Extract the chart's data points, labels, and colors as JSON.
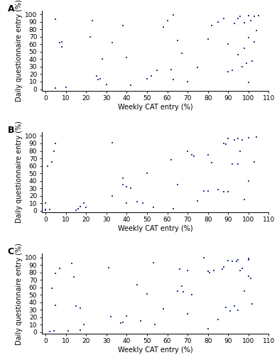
{
  "A": {
    "x": [
      5,
      5,
      7,
      8,
      8,
      10,
      22,
      23,
      25,
      26,
      27,
      28,
      30,
      33,
      38,
      40,
      42,
      50,
      52,
      55,
      58,
      60,
      62,
      63,
      63,
      65,
      67,
      70,
      75,
      80,
      82,
      85,
      88,
      90,
      90,
      92,
      93,
      95,
      95,
      96,
      97,
      98,
      98,
      99,
      100,
      100,
      100,
      101,
      102,
      103,
      103,
      104,
      105
    ],
    "y": [
      1,
      94,
      62,
      57,
      63,
      2,
      70,
      92,
      18,
      13,
      14,
      40,
      6,
      62,
      85,
      42,
      5,
      14,
      18,
      25,
      83,
      92,
      26,
      13,
      99,
      65,
      48,
      10,
      29,
      67,
      85,
      90,
      95,
      23,
      60,
      25,
      88,
      46,
      95,
      97,
      30,
      55,
      89,
      35,
      9,
      69,
      98,
      92,
      38,
      63,
      97,
      78,
      98
    ]
  },
  "B": {
    "x": [
      0,
      0,
      0,
      0,
      1,
      2,
      3,
      4,
      5,
      15,
      16,
      17,
      19,
      20,
      33,
      33,
      38,
      38,
      40,
      40,
      42,
      45,
      48,
      50,
      53,
      62,
      63,
      65,
      70,
      72,
      73,
      75,
      78,
      80,
      80,
      82,
      85,
      88,
      88,
      89,
      90,
      90,
      92,
      93,
      95,
      95,
      96,
      97,
      98,
      100,
      100,
      103,
      104
    ],
    "y": [
      1,
      1,
      10,
      2,
      60,
      2,
      65,
      80,
      90,
      1,
      3,
      5,
      10,
      4,
      91,
      20,
      35,
      43,
      32,
      10,
      30,
      12,
      10,
      50,
      4,
      68,
      3,
      35,
      80,
      75,
      73,
      13,
      26,
      75,
      26,
      64,
      28,
      90,
      25,
      89,
      97,
      25,
      62,
      95,
      62,
      97,
      80,
      95,
      15,
      40,
      98,
      65,
      99
    ]
  },
  "C": {
    "x": [
      2,
      3,
      4,
      5,
      5,
      7,
      11,
      13,
      14,
      15,
      17,
      17,
      19,
      31,
      32,
      37,
      38,
      40,
      45,
      47,
      50,
      53,
      54,
      58,
      65,
      66,
      67,
      68,
      70,
      70,
      72,
      78,
      80,
      80,
      81,
      83,
      85,
      87,
      88,
      89,
      90,
      91,
      92,
      93,
      94,
      95,
      95,
      96,
      97,
      98,
      100,
      100,
      100,
      101,
      102
    ],
    "y": [
      1,
      59,
      2,
      36,
      79,
      85,
      2,
      92,
      74,
      35,
      3,
      32,
      10,
      86,
      21,
      12,
      13,
      22,
      64,
      15,
      51,
      93,
      10,
      31,
      55,
      84,
      62,
      54,
      25,
      83,
      50,
      100,
      5,
      82,
      80,
      83,
      17,
      84,
      87,
      33,
      96,
      28,
      95,
      35,
      95,
      29,
      97,
      83,
      85,
      55,
      75,
      97,
      99,
      72,
      38
    ]
  },
  "dot_color": "#2b3d8f",
  "dot_size": 4,
  "xlabel": "Weekly CAT entry (%)",
  "ylabel": "Daily questionnaire entry (%)",
  "xlim": [
    -2,
    110
  ],
  "ylim": [
    -2,
    105
  ],
  "xticks": [
    0,
    10,
    20,
    30,
    40,
    50,
    60,
    70,
    80,
    90,
    100,
    110
  ],
  "yticks": [
    0,
    10,
    20,
    30,
    40,
    50,
    60,
    70,
    80,
    90,
    100
  ],
  "tick_fontsize": 6.5,
  "label_fontsize": 7,
  "panel_label_fontsize": 9,
  "marker": "s",
  "panels": [
    "A",
    "B",
    "C"
  ]
}
